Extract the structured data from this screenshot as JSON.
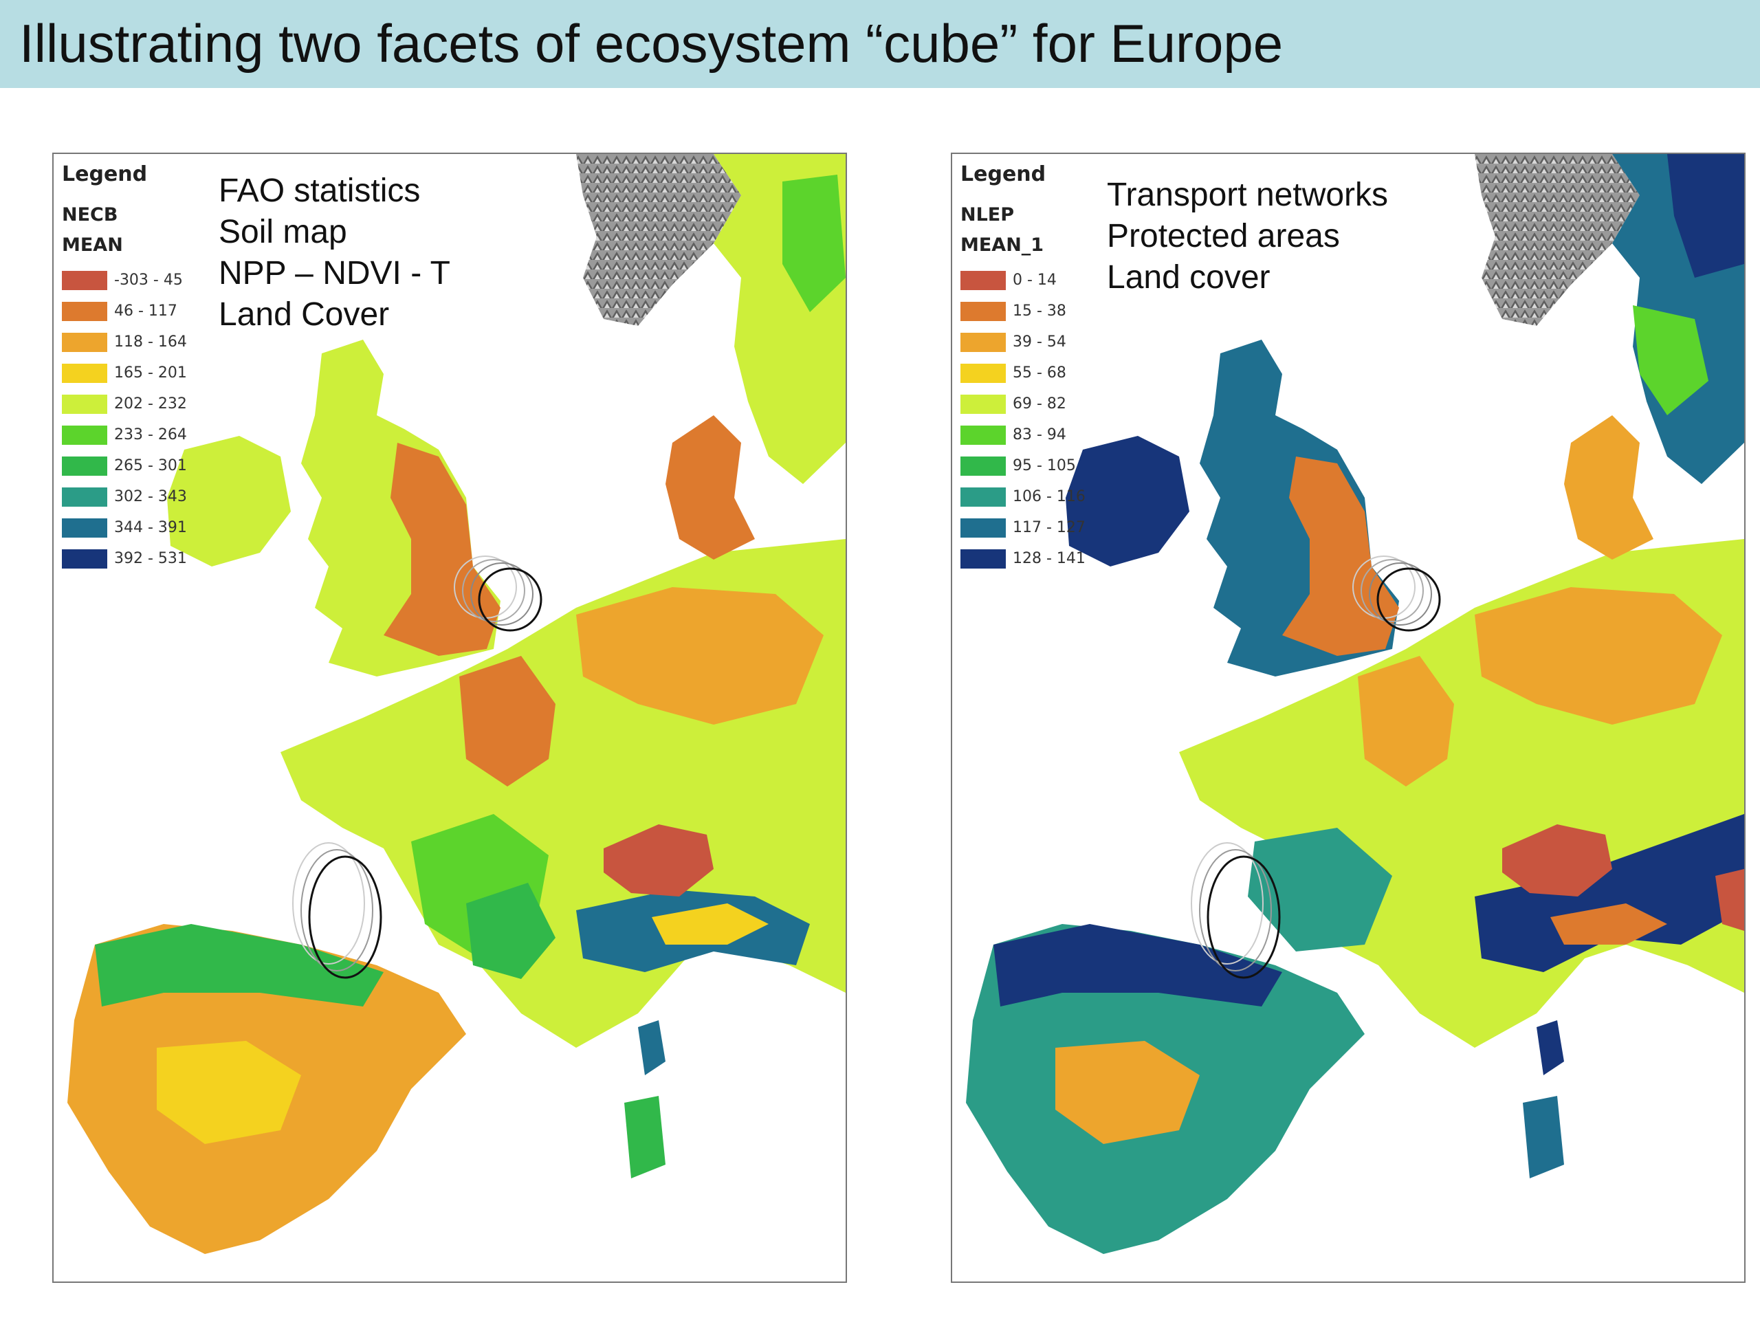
{
  "title": "Illustrating two facets of ecosystem “cube” for Europe",
  "colors": {
    "title_bar": "#b7dde3",
    "sea": "#ffffff",
    "mountain_relief": "#8c8c8c",
    "highlight_circle": "#111111"
  },
  "maps": [
    {
      "legend": {
        "title": "Legend",
        "layer": "NECB",
        "field": "MEAN",
        "classes": [
          {
            "label": "-303 - 45",
            "color": "#c8553f"
          },
          {
            "label": "46 - 117",
            "color": "#dd7a2e"
          },
          {
            "label": "118 - 164",
            "color": "#eda52d"
          },
          {
            "label": "165 - 201",
            "color": "#f4d21f"
          },
          {
            "label": "202 - 232",
            "color": "#cdef3a"
          },
          {
            "label": "233 - 264",
            "color": "#5cd42c"
          },
          {
            "label": "265 - 301",
            "color": "#31b84a"
          },
          {
            "label": "302 - 343",
            "color": "#2b9c87"
          },
          {
            "label": "344 - 391",
            "color": "#1f6f8f"
          },
          {
            "label": "392 - 531",
            "color": "#17357a"
          }
        ]
      },
      "data_sources": [
        "FAO statistics",
        "Soil map",
        "NPP – NDVI - T",
        "Land Cover"
      ]
    },
    {
      "legend": {
        "title": "Legend",
        "layer": "NLEP",
        "field": "MEAN_1",
        "classes": [
          {
            "label": "0 - 14",
            "color": "#c8553f"
          },
          {
            "label": "15 - 38",
            "color": "#dd7a2e"
          },
          {
            "label": "39 - 54",
            "color": "#eda52d"
          },
          {
            "label": "55 - 68",
            "color": "#f4d21f"
          },
          {
            "label": "69 - 82",
            "color": "#cdef3a"
          },
          {
            "label": "83 - 94",
            "color": "#5cd42c"
          },
          {
            "label": "95 - 105",
            "color": "#31b84a"
          },
          {
            "label": "106 - 116",
            "color": "#2b9c87"
          },
          {
            "label": "117 - 127",
            "color": "#1f6f8f"
          },
          {
            "label": "128 - 141",
            "color": "#17357a"
          }
        ]
      },
      "data_sources": [
        "Transport networks",
        "Protected areas",
        "Land cover"
      ]
    }
  ]
}
